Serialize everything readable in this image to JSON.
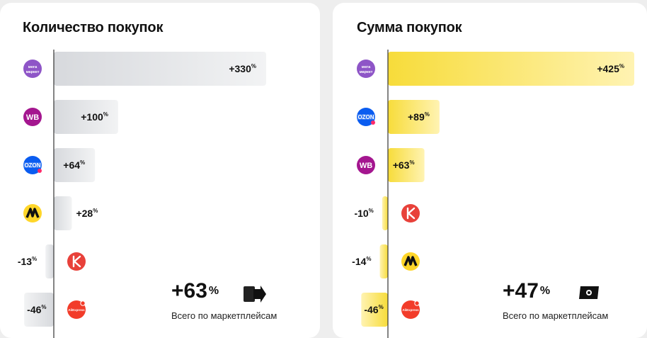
{
  "colors": {
    "gray_bar": "#e4e5e8",
    "yellow_bar": "#f7dc3a",
    "axis": "#333333"
  },
  "chart_data": [
    {
      "type": "bar",
      "orientation": "horizontal",
      "title": "Количество покупок",
      "categories": [
        "Мегамаркет",
        "WB",
        "Ozon",
        "Яндекс Маркет",
        "Купер",
        "AliExpress"
      ],
      "logo_texts": [
        "мега маркет",
        "WB",
        "OZON",
        "",
        "",
        "AliExpress"
      ],
      "values": [
        330,
        100,
        64,
        28,
        -13,
        -46
      ],
      "labels": [
        "+330",
        "+100",
        "+64",
        "+28",
        "-13",
        "-46"
      ],
      "unit": "%",
      "xlim": [
        -100,
        400
      ],
      "summary": {
        "value": "+63",
        "unit": "%",
        "caption": "Всего по маркетплейсам",
        "icon": "bag-arrow-icon"
      }
    },
    {
      "type": "bar",
      "orientation": "horizontal",
      "title": "Сумма покупок",
      "categories": [
        "Мегамаркет",
        "Ozon",
        "WB",
        "Купер",
        "Яндекс Маркет",
        "AliExpress"
      ],
      "logo_texts": [
        "мега маркет",
        "OZON",
        "WB",
        "",
        "",
        "AliExpress"
      ],
      "values": [
        425,
        89,
        63,
        -10,
        -14,
        -46
      ],
      "labels": [
        "+425",
        "+89",
        "+63",
        "-10",
        "-14",
        "-46"
      ],
      "unit": "%",
      "xlim": [
        -100,
        400
      ],
      "summary": {
        "value": "+47",
        "unit": "%",
        "caption": "Всего по маркетплейсам",
        "icon": "wallet-icon"
      }
    }
  ]
}
